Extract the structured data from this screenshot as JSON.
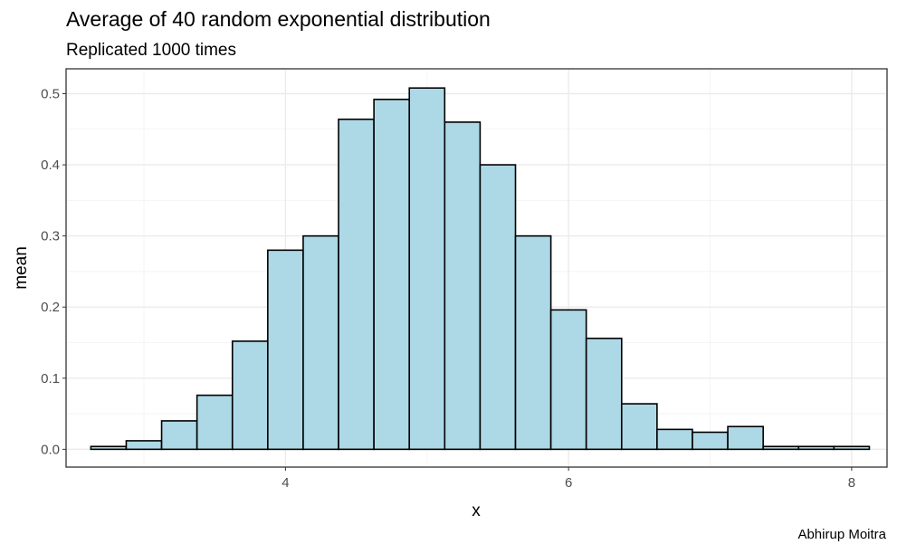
{
  "chart_data": {
    "type": "bar",
    "title": "Average of 40 random exponential distribution",
    "subtitle": "Replicated 1000 times",
    "caption": "Abhirup Moitra",
    "xlabel": "x",
    "ylabel": "mean",
    "xlim": [
      2.45,
      8.25
    ],
    "ylim": [
      -0.025,
      0.535
    ],
    "x_ticks": [
      4,
      6,
      8
    ],
    "x_tick_labels": [
      "4",
      "6",
      "8"
    ],
    "y_ticks": [
      0.0,
      0.1,
      0.2,
      0.3,
      0.4,
      0.5
    ],
    "y_tick_labels": [
      "0.0",
      "0.1",
      "0.2",
      "0.3",
      "0.4",
      "0.5"
    ],
    "grid": true,
    "bar_fill": "#add8e6",
    "bar_outline": "#000000",
    "bins": [
      {
        "x0": 2.625,
        "x1": 2.875,
        "value": 0.004
      },
      {
        "x0": 2.875,
        "x1": 3.125,
        "value": 0.012
      },
      {
        "x0": 3.125,
        "x1": 3.375,
        "value": 0.04
      },
      {
        "x0": 3.375,
        "x1": 3.625,
        "value": 0.076
      },
      {
        "x0": 3.625,
        "x1": 3.875,
        "value": 0.152
      },
      {
        "x0": 3.875,
        "x1": 4.125,
        "value": 0.28
      },
      {
        "x0": 4.125,
        "x1": 4.375,
        "value": 0.3
      },
      {
        "x0": 4.375,
        "x1": 4.625,
        "value": 0.464
      },
      {
        "x0": 4.625,
        "x1": 4.875,
        "value": 0.492
      },
      {
        "x0": 4.875,
        "x1": 5.125,
        "value": 0.508
      },
      {
        "x0": 5.125,
        "x1": 5.375,
        "value": 0.46
      },
      {
        "x0": 5.375,
        "x1": 5.625,
        "value": 0.4
      },
      {
        "x0": 5.625,
        "x1": 5.875,
        "value": 0.3
      },
      {
        "x0": 5.875,
        "x1": 6.125,
        "value": 0.196
      },
      {
        "x0": 6.125,
        "x1": 6.375,
        "value": 0.156
      },
      {
        "x0": 6.375,
        "x1": 6.625,
        "value": 0.064
      },
      {
        "x0": 6.625,
        "x1": 6.875,
        "value": 0.028
      },
      {
        "x0": 6.875,
        "x1": 7.125,
        "value": 0.024
      },
      {
        "x0": 7.125,
        "x1": 7.375,
        "value": 0.032
      },
      {
        "x0": 7.375,
        "x1": 7.625,
        "value": 0.004
      },
      {
        "x0": 7.625,
        "x1": 7.875,
        "value": 0.004
      },
      {
        "x0": 7.875,
        "x1": 8.125,
        "value": 0.004
      }
    ]
  }
}
